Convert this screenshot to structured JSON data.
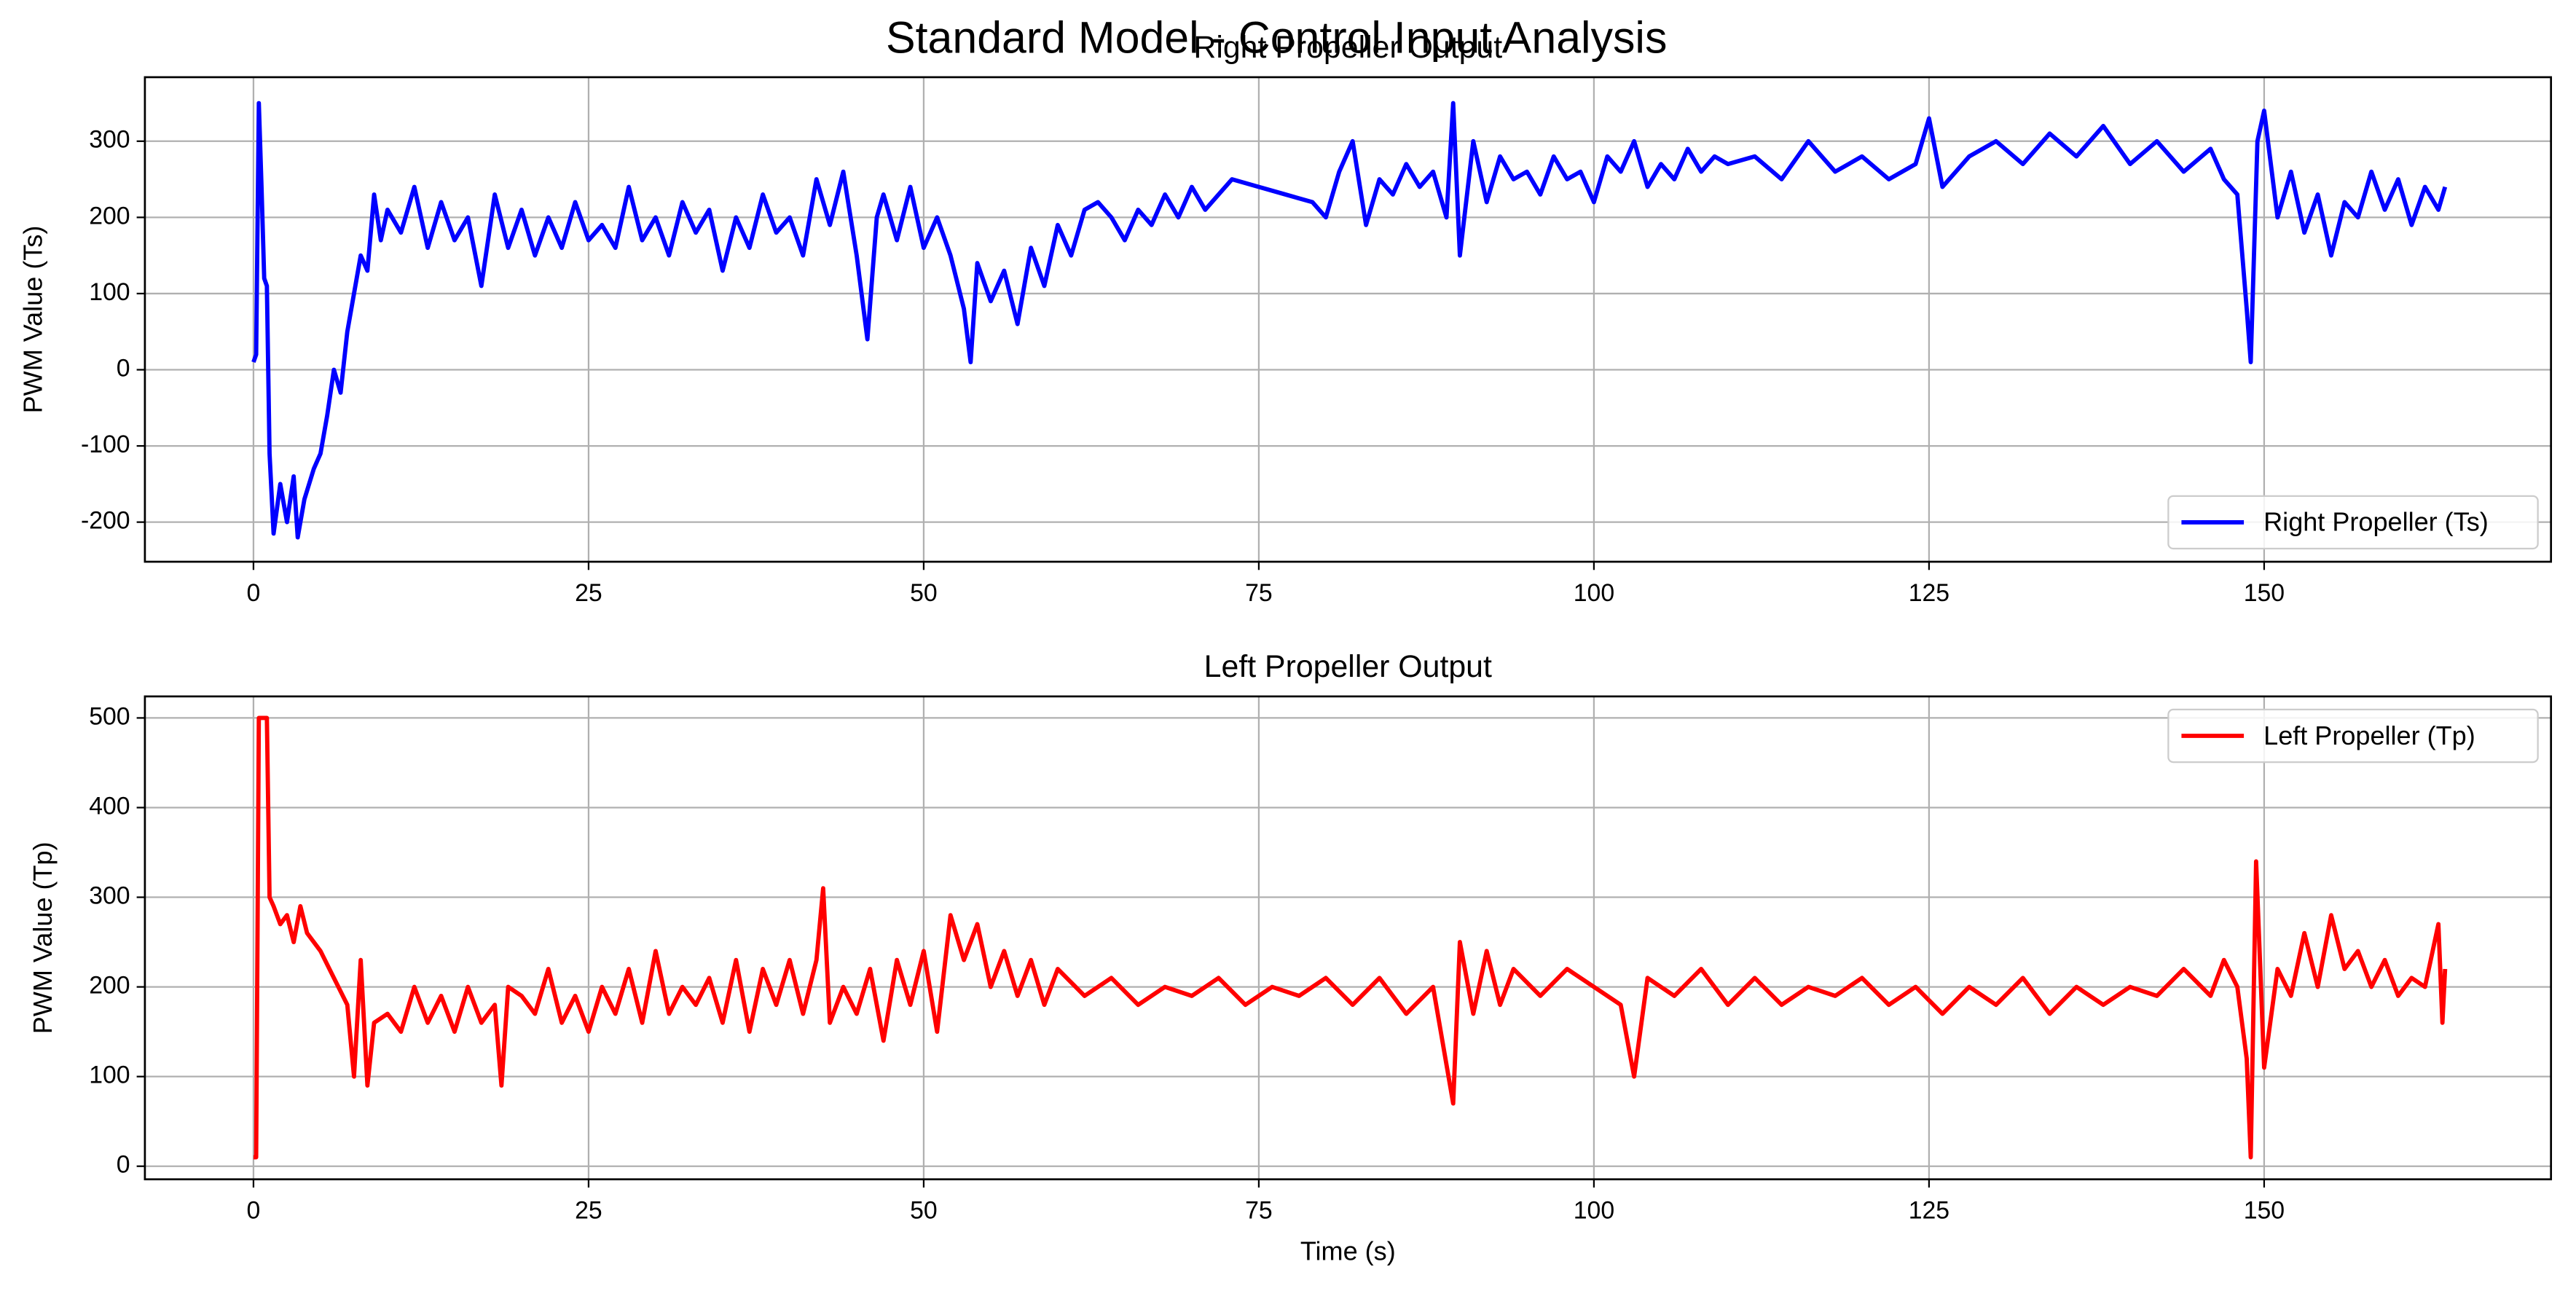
{
  "title": "Standard Model - Control Input Analysis",
  "chart_data": [
    {
      "type": "line",
      "title": "Right Propeller Output",
      "y_label": "PWM Value (Ts)",
      "xlim": [
        -8.1,
        171.4
      ],
      "ylim": [
        -252,
        384
      ],
      "xticks": [
        0,
        25,
        50,
        75,
        100,
        125,
        150
      ],
      "yticks": [
        -200,
        -100,
        0,
        100,
        200,
        300
      ],
      "grid": true,
      "legend": "lower right",
      "x": [
        0,
        0.2,
        0.4,
        0.6,
        0.8,
        1,
        1.2,
        1.5,
        2,
        2.5,
        3,
        3.3,
        3.8,
        4.5,
        5,
        5.5,
        6,
        6.5,
        7,
        7.5,
        8,
        8.5,
        9,
        9.5,
        10,
        11,
        12,
        13,
        14,
        15,
        16,
        17,
        18,
        19,
        20,
        21,
        22,
        23,
        24,
        25,
        26,
        27,
        28,
        29,
        30,
        31,
        32,
        33,
        34,
        35,
        36,
        37,
        38,
        39,
        40,
        41,
        42,
        43,
        44,
        45,
        45.8,
        46.5,
        47,
        48,
        49,
        50,
        51,
        52,
        53,
        53.5,
        54,
        55,
        56,
        57,
        58,
        59,
        60,
        61,
        62,
        63,
        64,
        65,
        66,
        67,
        68,
        69,
        70,
        71,
        72,
        73,
        75,
        77,
        79,
        80,
        81,
        82,
        83,
        84,
        85,
        86,
        87,
        88,
        89,
        89.5,
        90,
        91,
        92,
        93,
        94,
        95,
        96,
        97,
        98,
        99,
        100,
        101,
        102,
        103,
        104,
        105,
        106,
        107,
        108,
        109,
        110,
        112,
        114,
        116,
        118,
        120,
        122,
        124,
        125,
        126,
        128,
        130,
        132,
        134,
        136,
        138,
        140,
        142,
        144,
        146,
        147,
        148,
        148.7,
        149,
        149.5,
        150,
        151,
        152,
        153,
        154,
        155,
        156,
        157,
        158,
        159,
        160,
        161,
        162,
        163,
        163.5
      ],
      "series": [
        {
          "name": "Right Propeller (Ts)",
          "color": "#0000ff",
          "values": [
            10,
            20,
            350,
            240,
            120,
            110,
            -110,
            -215,
            -150,
            -200,
            -140,
            -220,
            -170,
            -130,
            -110,
            -60,
            0,
            -30,
            50,
            100,
            150,
            130,
            230,
            170,
            210,
            180,
            240,
            160,
            220,
            170,
            200,
            110,
            230,
            160,
            210,
            150,
            200,
            160,
            220,
            170,
            190,
            160,
            240,
            170,
            200,
            150,
            220,
            180,
            210,
            130,
            200,
            160,
            230,
            180,
            200,
            150,
            250,
            190,
            260,
            150,
            40,
            200,
            230,
            170,
            240,
            160,
            200,
            150,
            80,
            10,
            140,
            90,
            130,
            60,
            160,
            110,
            190,
            150,
            210,
            220,
            200,
            170,
            210,
            190,
            230,
            200,
            240,
            210,
            230,
            250,
            240,
            230,
            220,
            200,
            260,
            300,
            190,
            250,
            230,
            270,
            240,
            260,
            200,
            350,
            150,
            300,
            220,
            280,
            250,
            260,
            230,
            280,
            250,
            260,
            220,
            280,
            260,
            300,
            240,
            270,
            250,
            290,
            260,
            280,
            270,
            280,
            250,
            300,
            260,
            280,
            250,
            270,
            330,
            240,
            280,
            300,
            270,
            310,
            280,
            320,
            270,
            300,
            260,
            290,
            250,
            230,
            80,
            10,
            300,
            340,
            200,
            260,
            180,
            230,
            150,
            220,
            200,
            260,
            210,
            250,
            190,
            240,
            210,
            240
          ]
        }
      ]
    },
    {
      "type": "line",
      "title": "Left Propeller Output",
      "x_label": "Time (s)",
      "y_label": "PWM Value (Tp)",
      "xlim": [
        -8.1,
        171.4
      ],
      "ylim": [
        -14.6,
        524
      ],
      "xticks": [
        0,
        25,
        50,
        75,
        100,
        125,
        150
      ],
      "yticks": [
        0,
        100,
        200,
        300,
        400,
        500
      ],
      "grid": true,
      "legend": "upper right",
      "x": [
        0,
        0.2,
        0.4,
        1,
        1.2,
        1.5,
        2,
        2.5,
        3,
        3.5,
        4,
        5,
        6,
        7,
        7.5,
        8,
        8.5,
        9,
        10,
        11,
        12,
        13,
        14,
        15,
        16,
        17,
        18,
        18.5,
        19,
        20,
        21,
        22,
        23,
        24,
        25,
        26,
        27,
        28,
        29,
        30,
        31,
        32,
        33,
        34,
        35,
        36,
        37,
        38,
        39,
        40,
        41,
        42,
        42.5,
        43,
        44,
        45,
        46,
        47,
        48,
        49,
        50,
        51,
        52,
        53,
        54,
        55,
        56,
        57,
        58,
        59,
        60,
        62,
        64,
        66,
        68,
        70,
        72,
        74,
        76,
        78,
        80,
        82,
        84,
        86,
        88,
        89.5,
        90,
        91,
        92,
        93,
        94,
        96,
        98,
        100,
        102,
        103,
        104,
        106,
        108,
        110,
        112,
        114,
        116,
        118,
        120,
        122,
        124,
        126,
        128,
        130,
        132,
        134,
        136,
        138,
        140,
        142,
        144,
        146,
        147,
        148,
        148.7,
        149,
        149.4,
        150,
        151,
        152,
        153,
        154,
        155,
        156,
        157,
        158,
        159,
        160,
        161,
        162,
        163,
        163.3,
        163.5
      ],
      "series": [
        {
          "name": "Left Propeller (Tp)",
          "color": "#ff0000",
          "values": [
            10,
            10,
            500,
            500,
            300,
            290,
            270,
            280,
            250,
            290,
            260,
            240,
            210,
            180,
            100,
            230,
            90,
            160,
            170,
            150,
            200,
            160,
            190,
            150,
            200,
            160,
            180,
            90,
            200,
            190,
            170,
            220,
            160,
            190,
            150,
            200,
            170,
            220,
            160,
            240,
            170,
            200,
            180,
            210,
            160,
            230,
            150,
            220,
            180,
            230,
            170,
            230,
            310,
            160,
            200,
            170,
            220,
            140,
            230,
            180,
            240,
            150,
            280,
            230,
            270,
            200,
            240,
            190,
            230,
            180,
            220,
            190,
            210,
            180,
            200,
            190,
            210,
            180,
            200,
            190,
            210,
            180,
            210,
            170,
            200,
            70,
            250,
            170,
            240,
            180,
            220,
            190,
            220,
            200,
            180,
            100,
            210,
            190,
            220,
            180,
            210,
            180,
            200,
            190,
            210,
            180,
            200,
            170,
            200,
            180,
            210,
            170,
            200,
            180,
            200,
            190,
            220,
            190,
            230,
            200,
            120,
            10,
            340,
            110,
            220,
            190,
            260,
            200,
            280,
            220,
            240,
            200,
            230,
            190,
            210,
            200,
            270,
            160,
            220
          ]
        }
      ]
    }
  ]
}
